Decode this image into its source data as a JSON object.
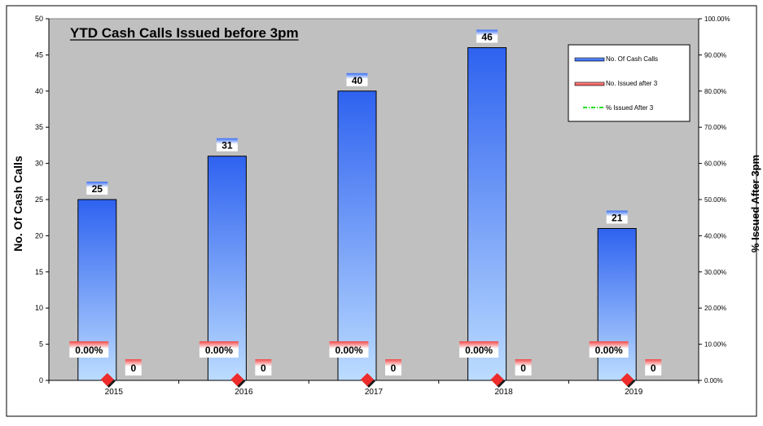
{
  "colors": {
    "plot_background": "#c0c0c0",
    "bar_top": "#2e62f0",
    "bar_bottom": "#bcdcff",
    "label_red": "#f04a4a",
    "marker_red": "#ee2c2c",
    "legend_line_green": "#20e020"
  },
  "chart_data": {
    "type": "bar",
    "title": "YTD Cash Calls Issued before 3pm",
    "ylabel_left": "No. Of Cash Calls",
    "ylabel_right": "% Issued  After 3pm",
    "categories": [
      "2015",
      "2016",
      "2017",
      "2018",
      "2019"
    ],
    "ylim_left": [
      0,
      50
    ],
    "yticks_left": [
      "0",
      "5",
      "10",
      "15",
      "20",
      "25",
      "30",
      "35",
      "40",
      "45",
      "50"
    ],
    "ylim_right": [
      0,
      100
    ],
    "yticks_right": [
      "0.00%",
      "10.00%",
      "20.00%",
      "30.00%",
      "40.00%",
      "50.00%",
      "60.00%",
      "70.00%",
      "80.00%",
      "90.00%",
      "100.00%"
    ],
    "series": [
      {
        "name": "No. Of Cash Calls",
        "type": "bar",
        "axis": "left",
        "values": [
          25,
          31,
          40,
          46,
          21
        ],
        "labels": [
          "25",
          "31",
          "40",
          "46",
          "21"
        ]
      },
      {
        "name": "No. Issued after 3",
        "type": "bar",
        "axis": "left",
        "values": [
          0,
          0,
          0,
          0,
          0
        ],
        "labels": [
          "0",
          "0",
          "0",
          "0",
          "0"
        ]
      },
      {
        "name": "% Issued After 3",
        "type": "line",
        "axis": "right",
        "values": [
          0,
          0,
          0,
          0,
          0
        ],
        "labels": [
          "0.00%",
          "0.00%",
          "0.00%",
          "0.00%",
          "0.00%"
        ]
      }
    ],
    "legend_position": "top-right",
    "grid": false
  }
}
